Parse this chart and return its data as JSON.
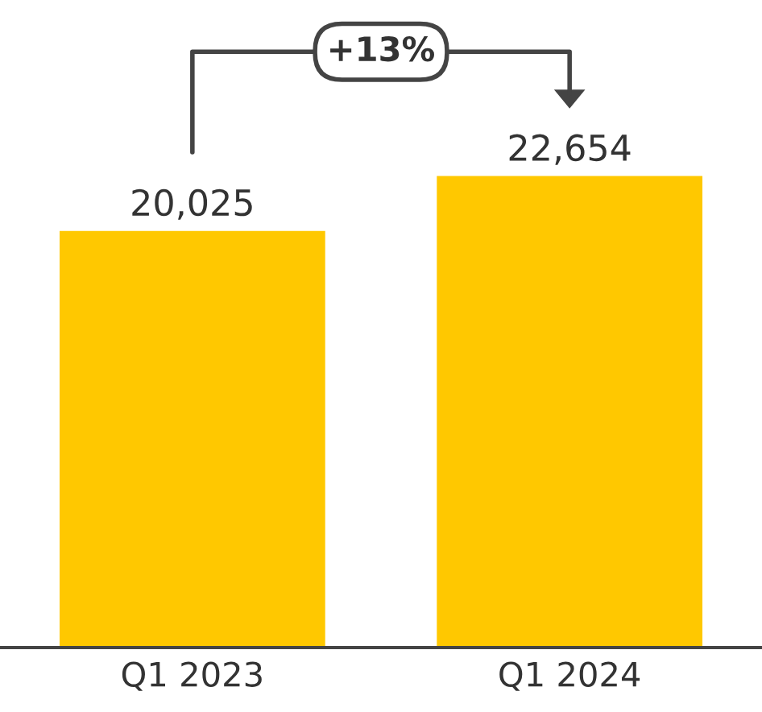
{
  "chart_data": {
    "type": "bar",
    "categories": [
      "Q1 2023",
      "Q1 2024"
    ],
    "values": [
      20025,
      22654
    ],
    "color": "#ffc800",
    "data_labels": true,
    "value_labels": [
      "20,025",
      "22,654"
    ],
    "annotations": [
      "+13%"
    ],
    "grid": false,
    "legend": false
  }
}
